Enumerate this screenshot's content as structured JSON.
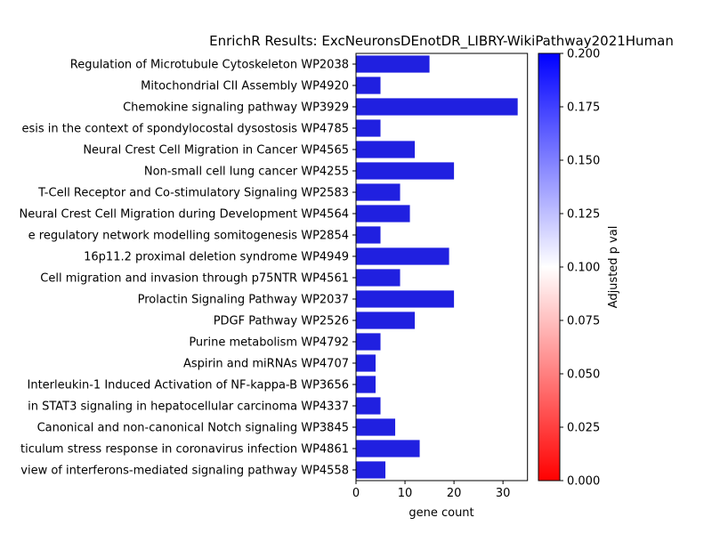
{
  "chart_data": {
    "type": "bar",
    "orientation": "horizontal",
    "title": "EnrichR Results: ExcNeuronsDEnotDR_LIBRY-WikiPathway2021Human",
    "xlabel": "gene count",
    "ylabel": "",
    "xlim": [
      0,
      35
    ],
    "xticks": [
      "0",
      "10",
      "20",
      "30"
    ],
    "grid": false,
    "categories": [
      "Regulation of Microtubule Cytoskeleton WP2038",
      "Mitochondrial CII Assembly WP4920",
      "Chemokine signaling pathway WP3929",
      "esis in the context of spondylocostal dysostosis WP4785",
      "Neural Crest Cell Migration in Cancer WP4565",
      "Non-small cell lung cancer WP4255",
      "T-Cell Receptor and Co-stimulatory Signaling WP2583",
      "Neural Crest Cell Migration during Development WP4564",
      "e regulatory network modelling somitogenesis  WP2854",
      "16p11.2 proximal deletion syndrome WP4949",
      "Cell migration and invasion through p75NTR WP4561",
      "Prolactin Signaling Pathway WP2037",
      "PDGF Pathway WP2526",
      "Purine metabolism WP4792",
      "Aspirin and miRNAs WP4707",
      "Interleukin-1 Induced Activation of NF-kappa-B WP3656",
      " in STAT3 signaling in hepatocellular carcinoma WP4337",
      "Canonical and non-canonical Notch signaling WP3845",
      "ticulum stress response in coronavirus infection WP4861",
      "view of interferons-mediated signaling pathway WP4558"
    ],
    "values": [
      15,
      5,
      33,
      5,
      12,
      20,
      9,
      11,
      5,
      19,
      9,
      20,
      12,
      5,
      4,
      4,
      5,
      8,
      13,
      6
    ],
    "bar_color": "#2020e0",
    "colorbar": {
      "label": "Adjusted p val",
      "range": [
        0,
        0.2
      ],
      "ticks": [
        "0.000",
        "0.025",
        "0.050",
        "0.075",
        "0.100",
        "0.125",
        "0.150",
        "0.175",
        "0.200"
      ],
      "colors": [
        "#ff0000",
        "#ffffff",
        "#0000ff"
      ]
    }
  }
}
